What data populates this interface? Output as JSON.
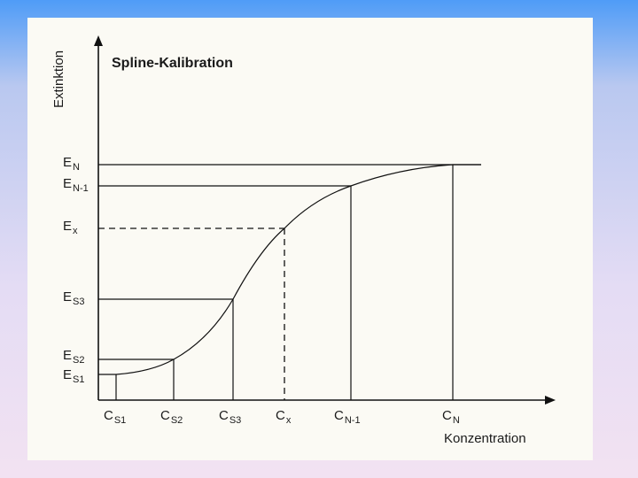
{
  "diagram": {
    "title": "Spline-Kalibration",
    "y_axis_label": "Extinktion",
    "x_axis_label": "Konzentration",
    "y_labels": [
      {
        "main": "E",
        "sub": "N"
      },
      {
        "main": "E",
        "sub": "N-1"
      },
      {
        "main": "E",
        "sub": "x"
      },
      {
        "main": "E",
        "sub": "S3"
      },
      {
        "main": "E",
        "sub": "S2"
      },
      {
        "main": "E",
        "sub": "S1"
      }
    ],
    "x_labels": [
      {
        "main": "C",
        "sub": "S1"
      },
      {
        "main": "C",
        "sub": "S2"
      },
      {
        "main": "C",
        "sub": "S3"
      },
      {
        "main": "C",
        "sub": "x"
      },
      {
        "main": "C",
        "sub": "N-1"
      },
      {
        "main": "C",
        "sub": "N"
      }
    ]
  }
}
